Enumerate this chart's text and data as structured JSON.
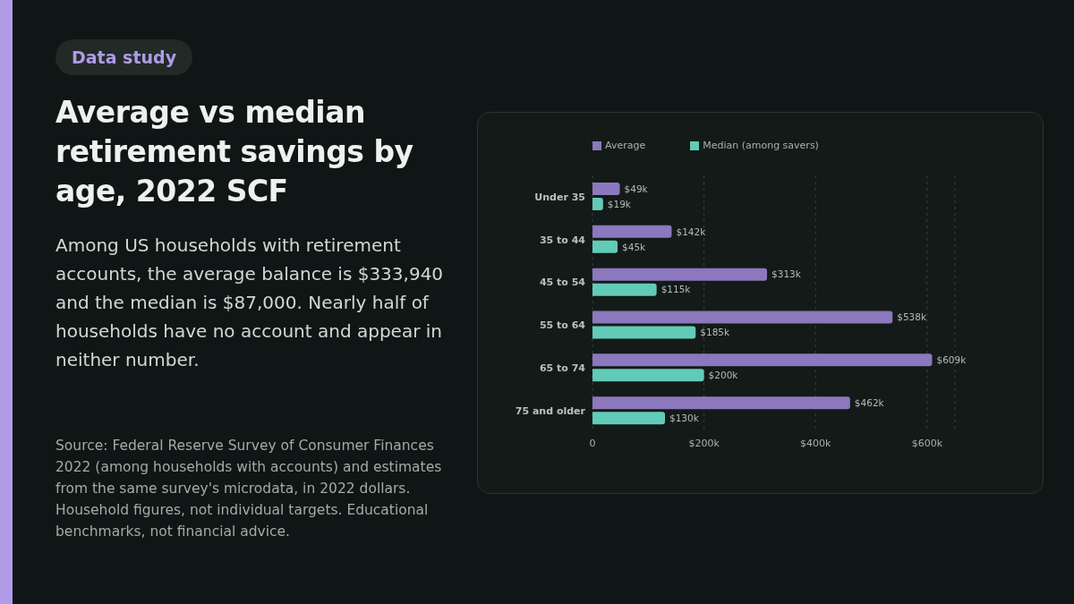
{
  "chart_data": {
    "type": "bar",
    "orientation": "horizontal",
    "title": "Average vs median retirement savings by age, 2022 SCF",
    "subtitle": "Among US households with retirement accounts, the average balance is $333,940 and the median is $87,000. Nearly half of households have no account and appear in neither number.",
    "annotations": [
      "Data study",
      "Source: Federal Reserve Survey of Consumer Finances 2022 (among households with accounts) and estimates from the same survey's microdata, in 2022 dollars. Household figures, not individual targets. Educational benchmarks, not financial advice."
    ],
    "categories": [
      "Under 35",
      "35 to 44",
      "45 to 54",
      "55 to 64",
      "65 to 74",
      "75 and older"
    ],
    "series": [
      {
        "name": "Average",
        "color": "#8b78bd",
        "values": [
          49,
          142,
          313,
          538,
          609,
          462
        ],
        "value_labels": [
          "$49k",
          "$142k",
          "$313k",
          "$538k",
          "$609k",
          "$462k"
        ]
      },
      {
        "name": "Median (among savers)",
        "color": "#62cbb7",
        "values": [
          19,
          45,
          115,
          185,
          200,
          130
        ],
        "value_labels": [
          "$19k",
          "$45k",
          "$115k",
          "$185k",
          "$200k",
          "$130k"
        ]
      }
    ],
    "xlim": [
      0,
      650
    ],
    "xticks": [
      0,
      {
        "value": 200,
        "label": "$200k"
      },
      {
        "value": 400,
        "label": "$400k"
      },
      {
        "value": 600,
        "label": "$600k"
      }
    ],
    "grid": "x",
    "legend": "top left"
  }
}
